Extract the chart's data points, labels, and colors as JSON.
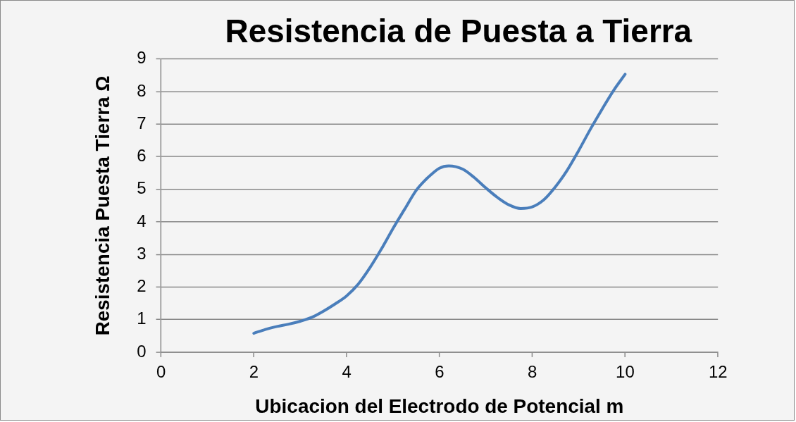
{
  "chart_data": {
    "type": "line",
    "title": "Resistencia de Puesta a Tierra",
    "xlabel": "Ubicacion del Electrodo de Potencial m",
    "ylabel": "Resistencia Puesta Tierra Ω",
    "x": [
      2,
      2.25,
      2.5,
      2.75,
      3,
      3.25,
      3.5,
      3.75,
      4,
      4.25,
      4.5,
      4.75,
      5,
      5.25,
      5.5,
      5.75,
      6,
      6.2,
      6.5,
      6.75,
      7,
      7.25,
      7.5,
      7.75,
      8,
      8.25,
      8.5,
      8.75,
      9,
      9.25,
      9.5,
      9.75,
      10
    ],
    "series": [
      {
        "color": "#4a7ebb",
        "values": [
          0.58,
          0.7,
          0.79,
          0.86,
          0.95,
          1.07,
          1.26,
          1.48,
          1.73,
          2.09,
          2.59,
          3.17,
          3.8,
          4.39,
          4.97,
          5.36,
          5.65,
          5.72,
          5.62,
          5.36,
          5.04,
          4.75,
          4.52,
          4.41,
          4.46,
          4.68,
          5.08,
          5.58,
          6.19,
          6.84,
          7.45,
          8.03,
          8.53
        ]
      }
    ],
    "xlim": [
      0,
      12
    ],
    "xticks": [
      0,
      2,
      4,
      6,
      8,
      10,
      12
    ],
    "ylim": [
      0,
      9
    ],
    "yticks": [
      0,
      1,
      2,
      3,
      4,
      5,
      6,
      7,
      8,
      9
    ],
    "grid": "y"
  }
}
